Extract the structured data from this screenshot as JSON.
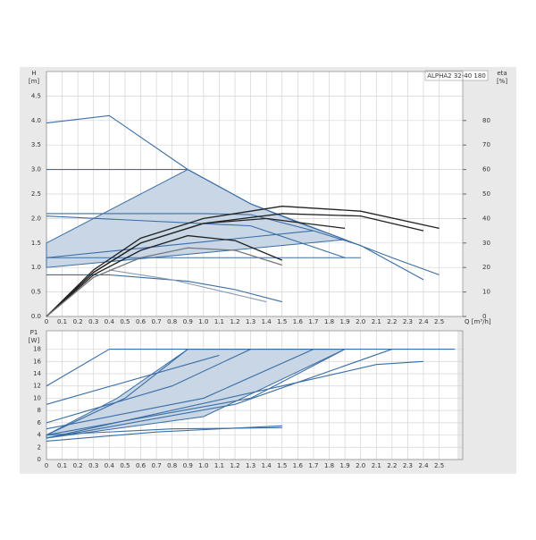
{
  "chart_data": [
    {
      "type": "line",
      "title": "ALPHA2 32-40 180",
      "ylabel": "H",
      "yunit": "[m]",
      "y2label": "eta",
      "y2unit": "[%]",
      "xlabel": "Q [m³/h]",
      "xlim": [
        0,
        2.65
      ],
      "ylim": [
        0,
        5
      ],
      "y2lim": [
        0,
        100
      ],
      "grid": true,
      "xticks": [
        0,
        0.1,
        0.2,
        0.3,
        0.4,
        0.5,
        0.6,
        0.7,
        0.8,
        0.9,
        {
          "value": 1,
          "label": "1.0"
        },
        1.1,
        1.2,
        1.3,
        1.4,
        1.5,
        1.6,
        1.7,
        1.8,
        1.9,
        {
          "value": 2,
          "label": "2.0"
        },
        2.1,
        2.2,
        2.3,
        2.4,
        2.5
      ],
      "yticks": [
        {
          "value": 0,
          "label": "0.0"
        },
        0.5,
        {
          "value": 1,
          "label": "1.0"
        },
        1.5,
        {
          "value": 2,
          "label": "2.0"
        },
        2.5,
        {
          "value": 3,
          "label": "3.0"
        },
        3.5,
        {
          "value": 4,
          "label": "4.0"
        },
        4.5
      ],
      "y2ticks": [
        0,
        10,
        20,
        30,
        40,
        50,
        60,
        70,
        80
      ],
      "series": [
        {
          "color": "#3a6ea5",
          "fill": "#c9d6e6",
          "x": [
            0,
            0.9,
            1.3,
            1.9,
            0
          ],
          "values": [
            1.5,
            3.0,
            2.3,
            1.57,
            1.0
          ]
        },
        {
          "color": "#3a6ea5",
          "x": [
            0,
            0.4,
            0.9,
            1.3,
            1.6,
            1.9,
            2.2,
            2.5
          ],
          "values": [
            3.95,
            4.1,
            3.0,
            2.3,
            1.92,
            1.57,
            1.2,
            0.85
          ]
        },
        {
          "color": "#3a6ea5",
          "x": [
            0,
            0.9
          ],
          "values": [
            3,
            3
          ]
        },
        {
          "color": "#3a6ea5",
          "x": [
            0,
            0.5,
            1.0,
            1.3,
            1.7,
            2.0,
            2.4
          ],
          "values": [
            2.1,
            2.1,
            2.1,
            2.08,
            1.75,
            1.45,
            0.75
          ]
        },
        {
          "color": "#3a6ea5",
          "x": [
            0,
            1.3,
            1.9
          ],
          "values": [
            2.05,
            1.85,
            1.2
          ]
        },
        {
          "color": "#3a6ea5",
          "x": [
            0,
            1.7
          ],
          "values": [
            1.2,
            1.75
          ]
        },
        {
          "color": "#3a6ea5",
          "x": [
            0,
            2.0
          ],
          "values": [
            1.2,
            1.2
          ]
        },
        {
          "color": "#3a6ea5",
          "x": [
            0,
            0.4,
            0.9,
            1.2,
            1.5
          ],
          "values": [
            0.85,
            0.85,
            0.72,
            0.55,
            0.3
          ]
        },
        {
          "color": "#8a9ab0",
          "x": [
            0.4,
            0.8,
            1.4
          ],
          "values": [
            0.95,
            0.75,
            0.3
          ]
        },
        {
          "color": "#222222",
          "axis": "y2",
          "x": [
            0,
            0.3,
            0.6,
            1.0,
            1.5,
            2.0,
            2.5
          ],
          "values": [
            0,
            19,
            32,
            40,
            45,
            43,
            36
          ]
        },
        {
          "color": "#222222",
          "axis": "y2",
          "x": [
            0,
            0.3,
            0.6,
            1.0,
            1.5,
            2.0,
            2.4
          ],
          "values": [
            0,
            18,
            30,
            38,
            42,
            41,
            35
          ]
        },
        {
          "color": "#222222",
          "axis": "y2",
          "x": [
            0,
            0.3,
            0.6,
            1.0,
            1.4,
            1.9
          ],
          "values": [
            0,
            18,
            30,
            38,
            40,
            36
          ]
        },
        {
          "color": "#222222",
          "axis": "y2",
          "x": [
            0,
            0.3,
            0.6,
            0.9,
            1.2,
            1.5
          ],
          "values": [
            0,
            17,
            27,
            33,
            31,
            23
          ]
        },
        {
          "color": "#777777",
          "axis": "y2",
          "x": [
            0,
            0.3,
            0.6,
            0.9,
            1.2,
            1.5
          ],
          "values": [
            0,
            16,
            24,
            28,
            27,
            21
          ]
        }
      ]
    },
    {
      "type": "line",
      "ylabel": "P1",
      "yunit": "[W]",
      "xlim": [
        0,
        2.65
      ],
      "ylim": [
        0,
        21
      ],
      "grid": true,
      "xticks": [
        0,
        0.1,
        0.2,
        0.3,
        0.4,
        0.5,
        0.6,
        0.7,
        0.8,
        0.9,
        {
          "value": 1,
          "label": "1.0"
        },
        1.1,
        1.2,
        1.3,
        1.4,
        1.5,
        1.6,
        1.7,
        1.8,
        1.9,
        {
          "value": 2,
          "label": "2.0"
        },
        2.1,
        2.2,
        2.3,
        2.4,
        2.5
      ],
      "yticks": [
        0,
        2,
        4,
        6,
        8,
        10,
        12,
        14,
        16,
        18
      ],
      "series": [
        {
          "color": "#3a6ea5",
          "fill": "#c9d6e6",
          "x": [
            0,
            0.45,
            0.9,
            1.9,
            1.0,
            0
          ],
          "values": [
            4,
            10,
            18,
            18,
            7,
            3.5
          ]
        },
        {
          "color": "#3a6ea5",
          "x": [
            0,
            0.4
          ],
          "values": [
            12,
            18
          ]
        },
        {
          "color": "#3a6ea5",
          "x": [
            0.4,
            2.6
          ],
          "values": [
            18,
            18
          ]
        },
        {
          "color": "#3a6ea5",
          "x": [
            0,
            0.5,
            0.9
          ],
          "values": [
            4,
            10,
            18
          ]
        },
        {
          "color": "#3a6ea5",
          "x": [
            0,
            0.8,
            1.3
          ],
          "values": [
            6,
            12,
            18
          ]
        },
        {
          "color": "#3a6ea5",
          "x": [
            0,
            1.0,
            1.7
          ],
          "values": [
            5,
            10,
            18
          ]
        },
        {
          "color": "#3a6ea5",
          "x": [
            0,
            1.3,
            1.9
          ],
          "values": [
            4,
            10,
            18
          ]
        },
        {
          "color": "#3a6ea5",
          "x": [
            0,
            1.2,
            2.2
          ],
          "values": [
            3.5,
            9,
            18
          ]
        },
        {
          "color": "#3a6ea5",
          "x": [
            0,
            1.1
          ],
          "values": [
            9,
            17
          ]
        },
        {
          "color": "#3a6ea5",
          "x": [
            0,
            1.5,
            2.1,
            2.4
          ],
          "values": [
            3.5,
            12,
            15.5,
            16
          ]
        },
        {
          "color": "#3a6ea5",
          "x": [
            0,
            0.7,
            1.5
          ],
          "values": [
            3,
            4.5,
            5.5
          ]
        },
        {
          "color": "#3a6ea5",
          "x": [
            0,
            0.8,
            1.5
          ],
          "values": [
            4,
            5,
            5.2
          ]
        }
      ]
    }
  ]
}
